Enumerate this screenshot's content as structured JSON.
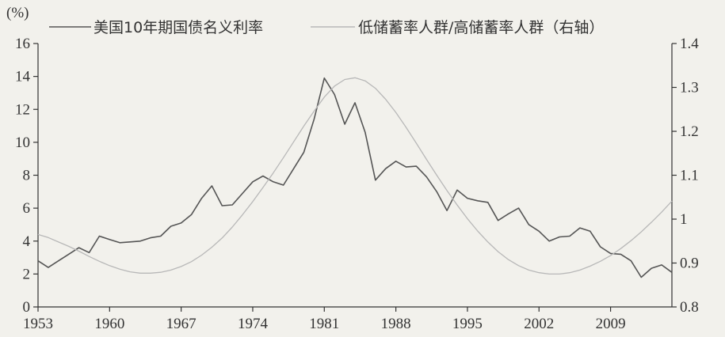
{
  "chart_data": {
    "type": "line",
    "unit_label": "(%)",
    "x": [
      1953,
      1954,
      1955,
      1956,
      1957,
      1958,
      1959,
      1960,
      1961,
      1962,
      1963,
      1964,
      1965,
      1966,
      1967,
      1968,
      1969,
      1970,
      1971,
      1972,
      1973,
      1974,
      1975,
      1976,
      1977,
      1978,
      1979,
      1980,
      1981,
      1982,
      1983,
      1984,
      1985,
      1986,
      1987,
      1988,
      1989,
      1990,
      1991,
      1992,
      1993,
      1994,
      1995,
      1996,
      1997,
      1998,
      1999,
      2000,
      2001,
      2002,
      2003,
      2004,
      2005,
      2006,
      2007,
      2008,
      2009,
      2010,
      2011,
      2012,
      2013,
      2014,
      2015
    ],
    "xticks": [
      "1953",
      "1960",
      "1967",
      "1974",
      "1981",
      "1988",
      "1995",
      "2002",
      "2009"
    ],
    "yticks_left": [
      "0",
      "2",
      "4",
      "6",
      "8",
      "10",
      "12",
      "14",
      "16"
    ],
    "yticks_right": [
      "0.8",
      "0.9",
      "1",
      "1.1",
      "1.2",
      "1.3",
      "1.4"
    ],
    "ylim_left": [
      0,
      16
    ],
    "ylim_right": [
      0.8,
      1.4
    ],
    "series": [
      {
        "name": "美国10年期国债名义利率",
        "axis": "left",
        "color": "#555555",
        "values": [
          2.8,
          2.4,
          2.8,
          3.2,
          3.6,
          3.3,
          4.3,
          4.1,
          3.9,
          3.95,
          4.0,
          4.2,
          4.3,
          4.9,
          5.1,
          5.6,
          6.6,
          7.35,
          6.15,
          6.2,
          6.9,
          7.6,
          7.95,
          7.6,
          7.4,
          8.4,
          9.4,
          11.4,
          13.9,
          12.9,
          11.1,
          12.4,
          10.6,
          7.7,
          8.4,
          8.85,
          8.5,
          8.55,
          7.9,
          7.0,
          5.85,
          7.1,
          6.6,
          6.45,
          6.35,
          5.25,
          5.65,
          6.0,
          5.0,
          4.6,
          4.0,
          4.25,
          4.3,
          4.8,
          4.6,
          3.65,
          3.25,
          3.2,
          2.8,
          1.8,
          2.35,
          2.55,
          2.1
        ]
      },
      {
        "name": "低储蓄率人群/高储蓄率人群（右轴）",
        "axis": "right",
        "color": "#b8b8b8",
        "values": [
          0.965,
          0.958,
          0.948,
          0.938,
          0.927,
          0.915,
          0.904,
          0.894,
          0.886,
          0.88,
          0.877,
          0.877,
          0.879,
          0.884,
          0.892,
          0.903,
          0.918,
          0.936,
          0.957,
          0.982,
          1.01,
          1.04,
          1.072,
          1.105,
          1.14,
          1.176,
          1.212,
          1.246,
          1.278,
          1.303,
          1.318,
          1.322,
          1.315,
          1.298,
          1.273,
          1.243,
          1.209,
          1.173,
          1.136,
          1.1,
          1.065,
          1.032,
          1.001,
          0.973,
          0.948,
          0.926,
          0.908,
          0.894,
          0.884,
          0.878,
          0.875,
          0.875,
          0.878,
          0.884,
          0.893,
          0.904,
          0.917,
          0.933,
          0.951,
          0.971,
          0.993,
          1.016,
          1.041
        ]
      }
    ],
    "legend_placement": "top",
    "grid": false
  }
}
